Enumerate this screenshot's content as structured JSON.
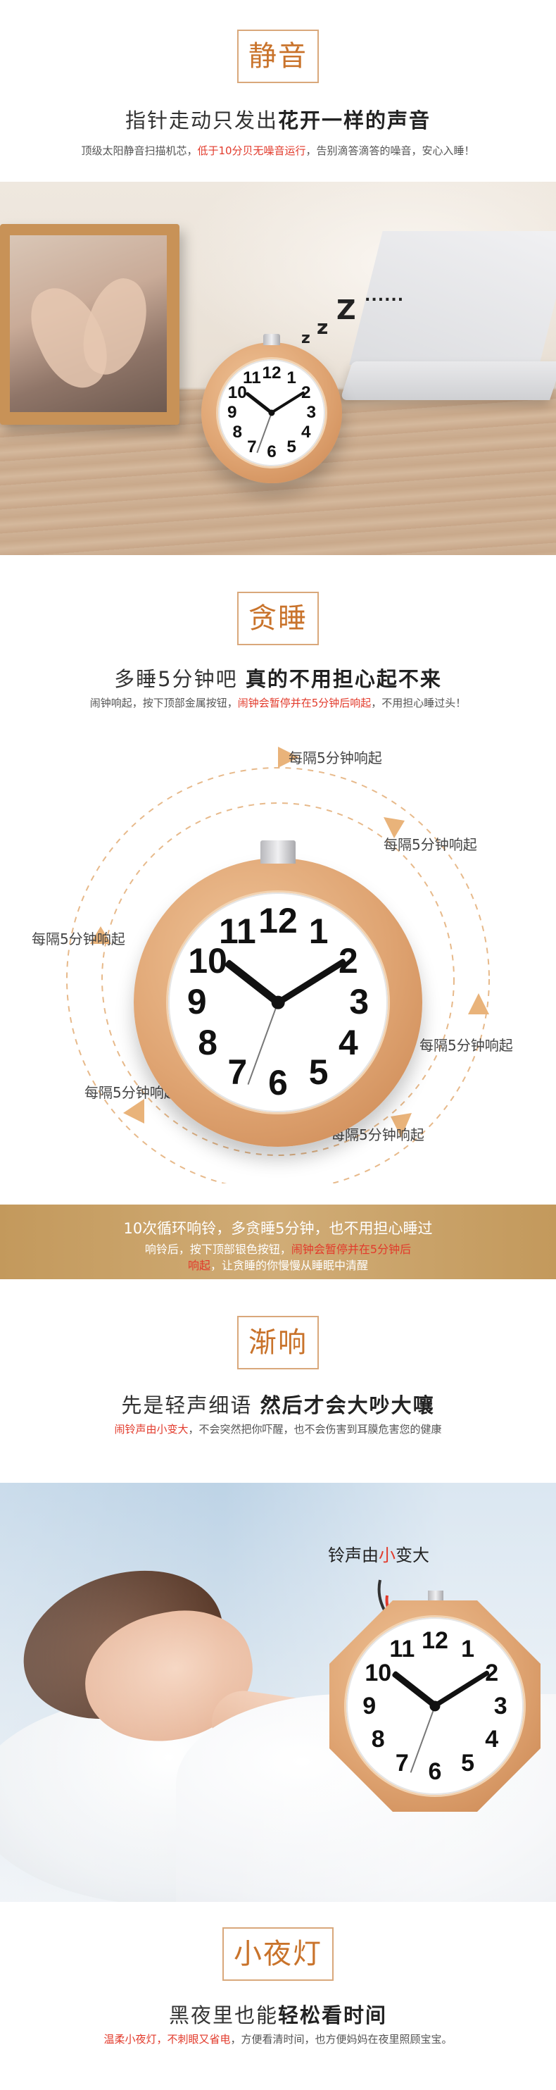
{
  "section1": {
    "title": "静音",
    "headline_plain": "指针走动只发出",
    "headline_bold": "花开一样的声音",
    "sub_a": "顶级太阳静音扫描机芯，",
    "sub_red": "低于10分贝无噪音运行",
    "sub_b": "，告别滴答滴答的噪音，安心入睡！",
    "zzz_dots": "......"
  },
  "section2": {
    "title": "贪睡",
    "headline_plain": "多睡5分钟吧 ",
    "headline_bold": "真的不用担心起不来",
    "sub_a": "闹钟响起，按下顶部金属按钮，",
    "sub_red": "闹钟会暂停并在5分钟后响起",
    "sub_b": "，不用担心睡过头！",
    "snooze_labels": [
      "每隔5分钟响起",
      "每隔5分钟响起",
      "每隔5分钟响起",
      "每隔5分钟响起",
      "每隔5分钟响起",
      "每隔5分钟响起"
    ]
  },
  "band": {
    "line1": "10次循环响铃，多贪睡5分钟，也不用担心睡过",
    "line2_a": "响铃后，按下顶部银色按钮，",
    "line2_red": "闹钟会暂停并在5分钟后",
    "line3_red": "响起",
    "line3_b": "，让贪睡的你慢慢从睡眠中清醒"
  },
  "section3": {
    "title": "渐响",
    "headline_plain": "先是轻声细语 ",
    "headline_bold": "然后才会大吵大嚷",
    "sub_red": "闹铃声由小变大",
    "sub_b": "，不会突然把你吓醒，也不会伤害到耳膜危害您的健康",
    "bell_a": "铃声由",
    "bell_red": "小",
    "bell_b": "变大"
  },
  "section4": {
    "title": "小夜灯",
    "headline_plain": "黑夜里也能",
    "headline_bold": "轻松看时间",
    "sub_red": "温柔小夜灯，不刺眼又省电",
    "sub_b": "，方便看清时间，也方便妈妈在夜里照顾宝宝。"
  },
  "clock_numbers": [
    "12",
    "1",
    "2",
    "3",
    "4",
    "5",
    "6",
    "7",
    "8",
    "9",
    "10",
    "11"
  ],
  "colors": {
    "accent_orange": "#c9732b",
    "title_border": "#d9a87b",
    "red": "#e23a2b",
    "band_gold": "#c3995c",
    "wood": "#dfa472"
  }
}
